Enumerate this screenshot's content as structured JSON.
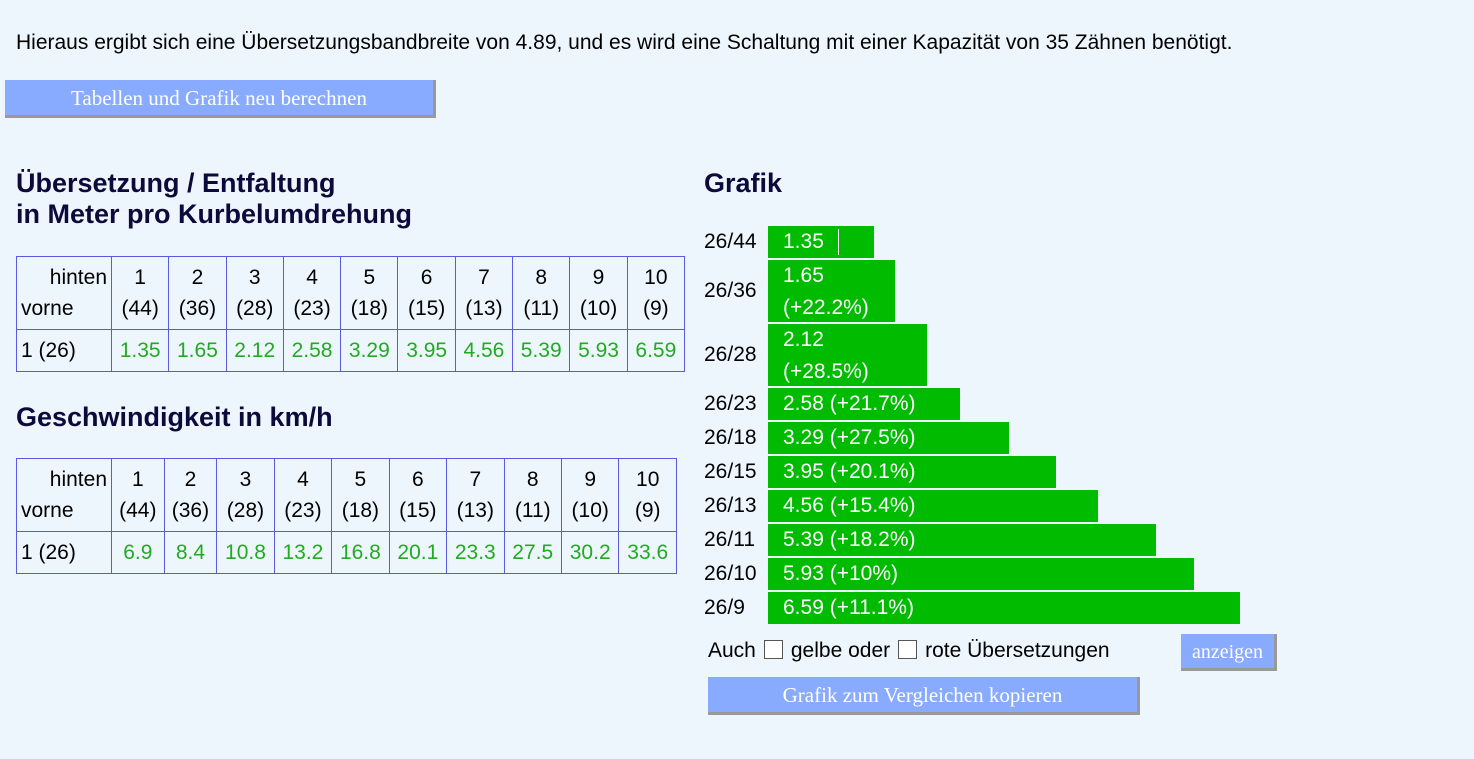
{
  "intro_text": "Hieraus ergibt sich eine Übersetzungsbandbreite von 4.89, und es wird eine Schaltung mit einer Kapazität von 35 Zähnen benötigt.",
  "recalc_button": "Tabellen und Grafik neu berechnen",
  "ratio_heading": {
    "line1": "Übersetzung / Entfaltung",
    "line2": "in Meter pro Kurbelumdrehung"
  },
  "speed_heading": "Geschwindigkeit in km/h",
  "graph_heading": "Grafik",
  "corner": {
    "rear": "hinten",
    "front": "vorne"
  },
  "columns": [
    {
      "gear": "1",
      "teeth": "(44)"
    },
    {
      "gear": "2",
      "teeth": "(36)"
    },
    {
      "gear": "3",
      "teeth": "(28)"
    },
    {
      "gear": "4",
      "teeth": "(23)"
    },
    {
      "gear": "5",
      "teeth": "(18)"
    },
    {
      "gear": "6",
      "teeth": "(15)"
    },
    {
      "gear": "7",
      "teeth": "(13)"
    },
    {
      "gear": "8",
      "teeth": "(11)"
    },
    {
      "gear": "9",
      "teeth": "(10)"
    },
    {
      "gear": "10",
      "teeth": "(9)"
    }
  ],
  "row_label": "1 (26)",
  "ratio_values": [
    "1.35",
    "1.65",
    "2.12",
    "2.58",
    "3.29",
    "3.95",
    "4.56",
    "5.39",
    "5.93",
    "6.59"
  ],
  "speed_values": [
    "6.9",
    "8.4",
    "10.8",
    "13.2",
    "16.8",
    "20.1",
    "23.3",
    "27.5",
    "30.2",
    "33.6"
  ],
  "bars": [
    {
      "label": "26/44",
      "value": 1.35,
      "line1": "1.35",
      "line2": ""
    },
    {
      "label": "26/36",
      "value": 1.65,
      "line1": "1.65",
      "line2": "(+22.2%)"
    },
    {
      "label": "26/28",
      "value": 2.12,
      "line1": "2.12",
      "line2": "(+28.5%)"
    },
    {
      "label": "26/23",
      "value": 2.58,
      "line1": "2.58 (+21.7%)",
      "line2": ""
    },
    {
      "label": "26/18",
      "value": 3.29,
      "line1": "3.29 (+27.5%)",
      "line2": ""
    },
    {
      "label": "26/15",
      "value": 3.95,
      "line1": "3.95 (+20.1%)",
      "line2": ""
    },
    {
      "label": "26/13",
      "value": 4.56,
      "line1": "4.56 (+15.4%)",
      "line2": ""
    },
    {
      "label": "26/11",
      "value": 5.39,
      "line1": "5.39 (+18.2%)",
      "line2": ""
    },
    {
      "label": "26/10",
      "value": 5.93,
      "line1": "5.93 (+10%)",
      "line2": ""
    },
    {
      "label": "26/9",
      "value": 6.59,
      "line1": "6.59 (+11.1%)",
      "line2": ""
    }
  ],
  "colors": {
    "bar": "#00bb00",
    "value_text": "#22aa22",
    "button": "#88aaff",
    "background": "#eef6fd"
  },
  "options": {
    "prefix": "Auch",
    "yellow_label": "gelbe oder",
    "red_label": "rote Übersetzungen",
    "yellow_checked": false,
    "red_checked": false,
    "show_button": "anzeigen"
  },
  "copy_button": "Grafik zum Vergleichen kopieren"
}
